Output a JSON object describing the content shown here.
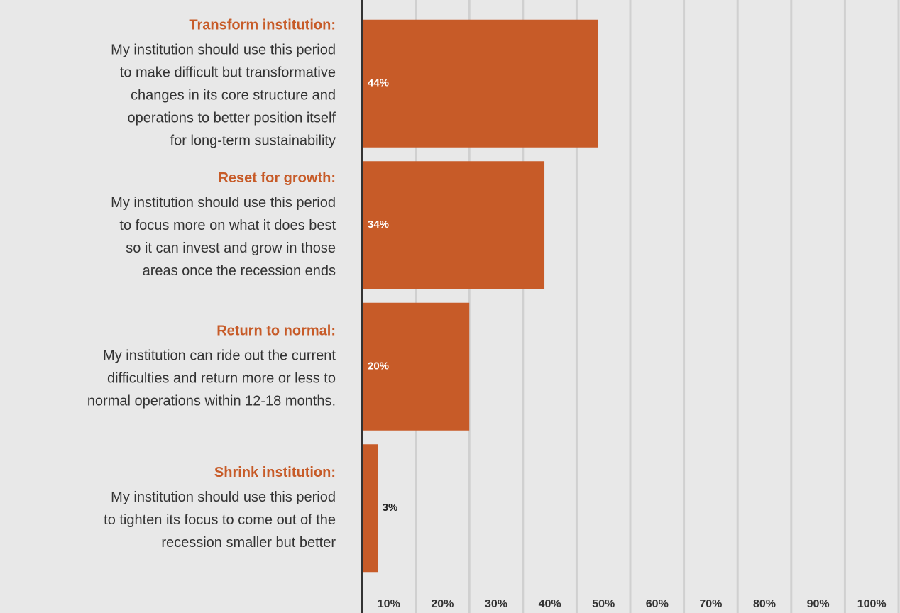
{
  "chart_data": {
    "type": "barh",
    "categories": [
      "Transform institution:",
      "Reset for growth:",
      "Return to normal:",
      "Shrink institution:"
    ],
    "descriptions": [
      [
        "My institution should use this period",
        "to make difficult but transformative",
        "changes in its core structure and",
        "operations to better position itself",
        "for long-term sustainability"
      ],
      [
        "My institution should use this period",
        "to focus more on what it does best",
        "so it can invest and grow in those",
        "areas once the recession ends"
      ],
      [
        "My institution can ride out the current",
        "difficulties and return more or less to",
        "normal operations within 12-18 months."
      ],
      [
        "My institution should use this period",
        "to tighten its focus to come out of the",
        "recession smaller but better"
      ]
    ],
    "values": [
      44,
      34,
      20,
      3
    ],
    "value_labels": [
      "44%",
      "34%",
      "20%",
      "3%"
    ],
    "color": "#c75b28",
    "xlim": [
      0,
      100
    ],
    "xticks": [
      {
        "value": 10,
        "label": "10%"
      },
      {
        "value": 20,
        "label": "20%"
      },
      {
        "value": 30,
        "label": "30%"
      },
      {
        "value": 40,
        "label": "40%"
      },
      {
        "value": 50,
        "label": "50%"
      },
      {
        "value": 60,
        "label": "60%"
      },
      {
        "value": 70,
        "label": "70%"
      },
      {
        "value": 80,
        "label": "80%"
      },
      {
        "value": 90,
        "label": "90%"
      },
      {
        "value": 100,
        "label": "100%"
      }
    ],
    "grid": true
  }
}
